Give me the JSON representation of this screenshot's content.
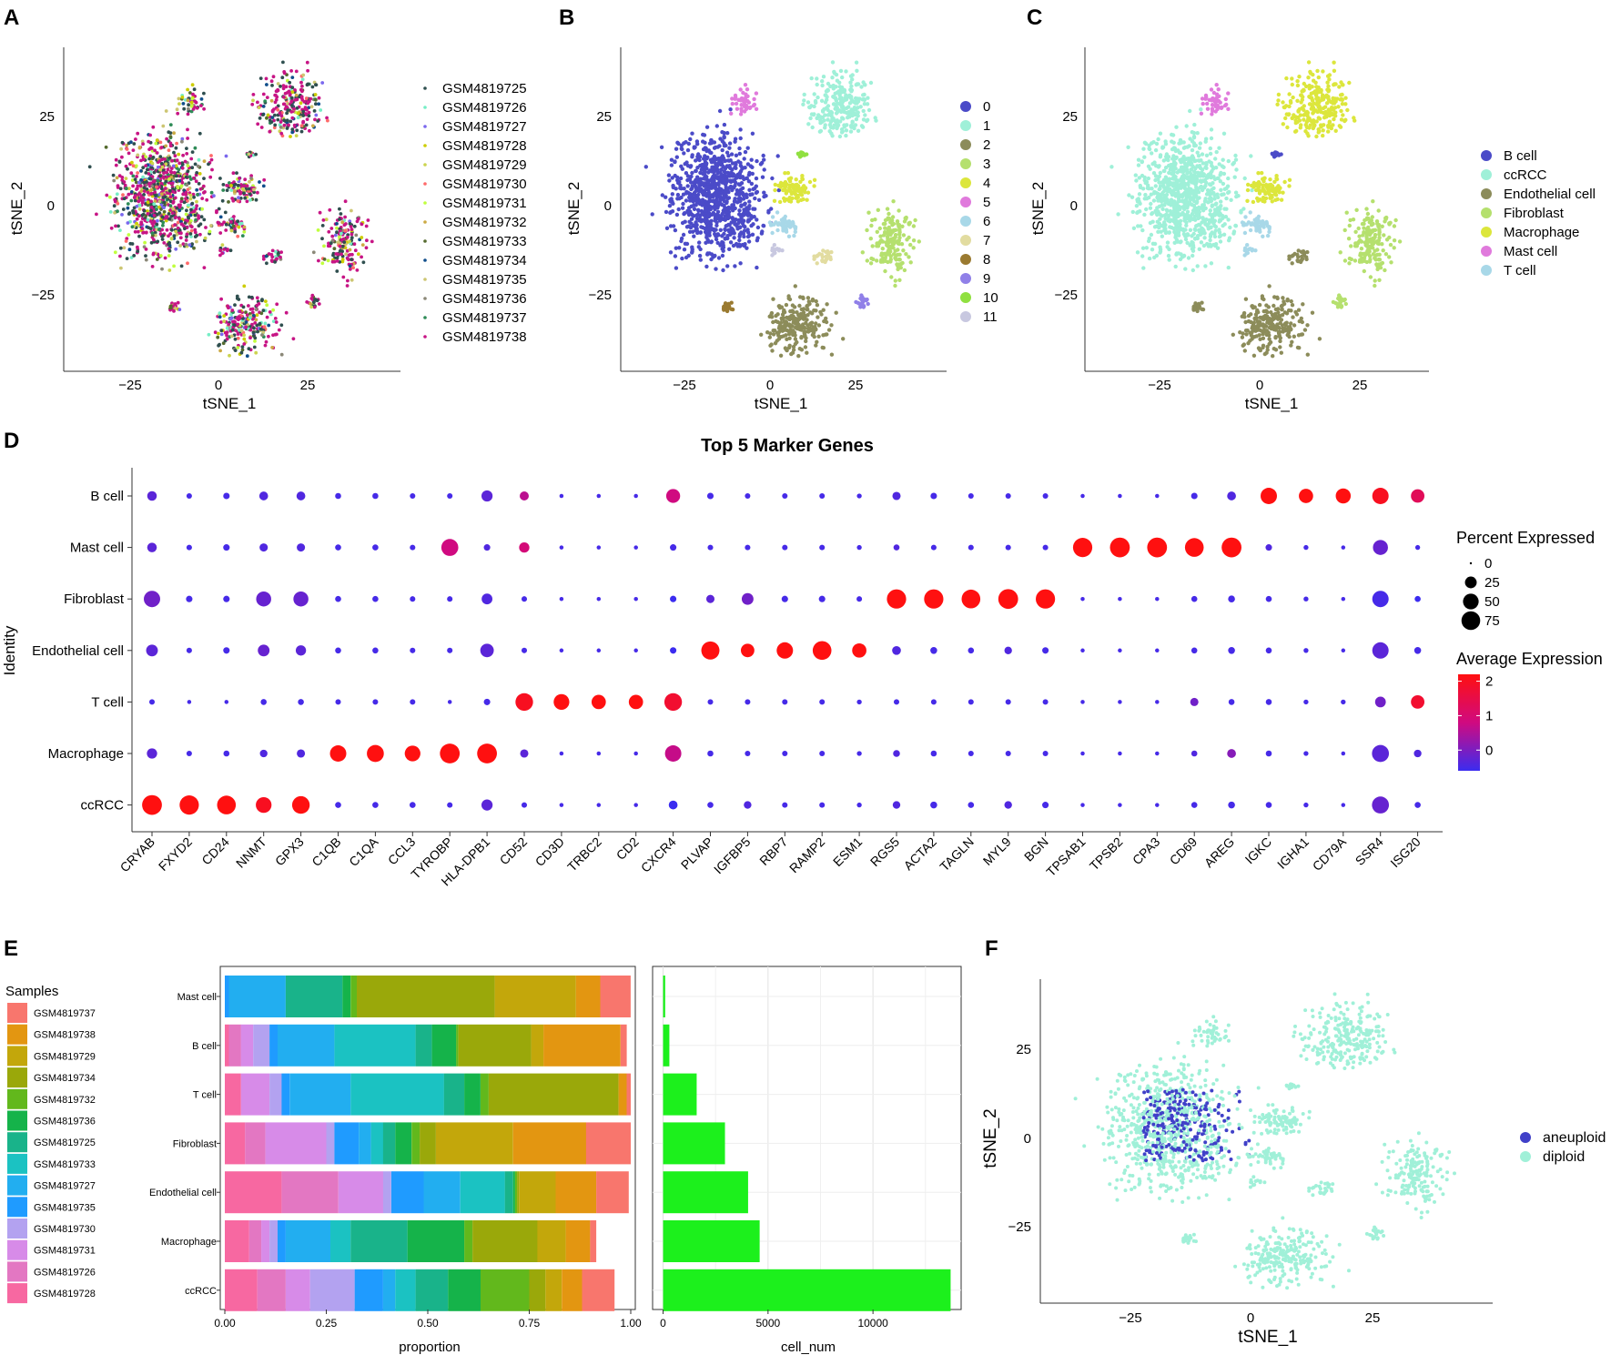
{
  "panel_letters": [
    "A",
    "B",
    "C",
    "D",
    "E",
    "F"
  ],
  "chart_data": [
    {
      "panel": "A",
      "type": "scatter",
      "xlabel": "tSNE_1",
      "ylabel": "tSNE_2",
      "xlim": [
        -42,
        46
      ],
      "ylim": [
        -46,
        45
      ],
      "xticks": [
        -25,
        0,
        25
      ],
      "yticks": [
        -25,
        0,
        25
      ],
      "xtick_labels": [
        "−25",
        "0",
        "25"
      ],
      "ytick_labels": [
        "−25",
        "0",
        "25"
      ],
      "legend": [
        "GSM4819725",
        "GSM4819726",
        "GSM4819727",
        "GSM4819728",
        "GSM4819729",
        "GSM4819730",
        "GSM4819731",
        "GSM4819732",
        "GSM4819733",
        "GSM4819734",
        "GSM4819735",
        "GSM4819736",
        "GSM4819737",
        "GSM4819738"
      ],
      "legend_colors": [
        "#2f4f4f",
        "#76eec6",
        "#7b68ee",
        "#cdcd00",
        "#ccd44f",
        "#ff6a6a",
        "#c0ff3e",
        "#ccaa44",
        "#556b2f",
        "#104e8b",
        "#cdc673",
        "#8b8878",
        "#2e8b57",
        "#c71585"
      ]
    },
    {
      "panel": "B",
      "type": "scatter",
      "xlabel": "tSNE_1",
      "ylabel": "tSNE_2",
      "xlim": [
        -42,
        46
      ],
      "ylim": [
        -46,
        45
      ],
      "xticks": [
        -25,
        0,
        25
      ],
      "yticks": [
        -25,
        0,
        25
      ],
      "xtick_labels": [
        "−25",
        "0",
        "25"
      ],
      "ytick_labels": [
        "−25",
        "0",
        "25"
      ],
      "legend": [
        "0",
        "1",
        "2",
        "3",
        "4",
        "5",
        "6",
        "7",
        "8",
        "9",
        "10",
        "11"
      ],
      "legend_colors": [
        "#4b4bc8",
        "#9ff0d8",
        "#8c8c5a",
        "#b5e06e",
        "#dce63c",
        "#e07adc",
        "#a8d8e8",
        "#e2dca0",
        "#9a7a30",
        "#9080e8",
        "#90e040",
        "#c8c8e0"
      ]
    },
    {
      "panel": "C",
      "type": "scatter",
      "xlabel": "tSNE_1",
      "ylabel": "tSNE_2",
      "xlim": [
        -42,
        46
      ],
      "ylim": [
        -46,
        45
      ],
      "xticks": [
        -25,
        0,
        25
      ],
      "yticks": [
        -25,
        0,
        25
      ],
      "xtick_labels": [
        "−25",
        "0",
        "25"
      ],
      "ytick_labels": [
        "−25",
        "0",
        "25"
      ],
      "legend": [
        "B cell",
        "ccRCC",
        "Endothelial cell",
        "Fibroblast",
        "Macrophage",
        "Mast cell",
        "T cell"
      ],
      "legend_colors": [
        "#4b4bc8",
        "#9ff0d8",
        "#8c8c5a",
        "#b5e06e",
        "#dce63c",
        "#e07adc",
        "#a8d8e8"
      ]
    },
    {
      "panel": "D",
      "type": "dotplot",
      "title": "Top 5 Marker Genes",
      "ylabel": "Identity",
      "genes": [
        "CRYAB",
        "FXYD2",
        "CD24",
        "NNMT",
        "GPX3",
        "C1QB",
        "C1QA",
        "CCL3",
        "TYROBP",
        "HLA-DPB1",
        "CD52",
        "CD3D",
        "TRBC2",
        "CD2",
        "CXCR4",
        "PLVAP",
        "IGFBP5",
        "RBP7",
        "RAMP2",
        "ESM1",
        "RGS5",
        "ACTA2",
        "TAGLN",
        "MYL9",
        "BGN",
        "TPSAB1",
        "TPSB2",
        "CPA3",
        "CD69",
        "AREG",
        "IGKC",
        "IGHA1",
        "CD79A",
        "SSR4",
        "ISG20"
      ],
      "identities": [
        "B cell",
        "Mast cell",
        "Fibroblast",
        "Endothelial cell",
        "T cell",
        "Macrophage",
        "ccRCC"
      ],
      "percent_expressed": [
        [
          15,
          3,
          5,
          12,
          12,
          4,
          4,
          3,
          3,
          22,
          13,
          1,
          1,
          1,
          38,
          5,
          3,
          3,
          3,
          2,
          10,
          5,
          3,
          3,
          3,
          1,
          1,
          1,
          5,
          12,
          55,
          40,
          45,
          55,
          35
        ],
        [
          15,
          3,
          5,
          10,
          10,
          4,
          4,
          3,
          60,
          5,
          18,
          1,
          1,
          1,
          5,
          3,
          3,
          3,
          3,
          2,
          4,
          3,
          3,
          3,
          3,
          80,
          85,
          85,
          75,
          85,
          5,
          2,
          1,
          45,
          2
        ],
        [
          55,
          5,
          5,
          45,
          45,
          4,
          4,
          3,
          3,
          20,
          3,
          1,
          1,
          1,
          5,
          10,
          25,
          5,
          5,
          3,
          80,
          80,
          75,
          85,
          80,
          1,
          1,
          1,
          4,
          6,
          4,
          2,
          1,
          55,
          4
        ],
        [
          25,
          3,
          5,
          25,
          18,
          4,
          4,
          3,
          3,
          35,
          3,
          1,
          1,
          1,
          5,
          70,
          35,
          55,
          75,
          40,
          12,
          6,
          4,
          8,
          5,
          1,
          1,
          1,
          4,
          6,
          4,
          2,
          1,
          55,
          6
        ],
        [
          3,
          1,
          1,
          4,
          4,
          3,
          3,
          3,
          1,
          5,
          65,
          50,
          40,
          40,
          65,
          3,
          3,
          3,
          3,
          2,
          3,
          3,
          3,
          3,
          3,
          1,
          1,
          1,
          10,
          4,
          4,
          2,
          2,
          20,
          35
        ],
        [
          18,
          3,
          4,
          8,
          10,
          55,
          60,
          50,
          85,
          85,
          10,
          1,
          1,
          1,
          55,
          4,
          3,
          3,
          3,
          2,
          6,
          4,
          3,
          3,
          3,
          1,
          1,
          1,
          4,
          12,
          4,
          2,
          1,
          60,
          8
        ],
        [
          85,
          80,
          75,
          50,
          65,
          4,
          4,
          4,
          3,
          22,
          3,
          1,
          1,
          1,
          12,
          4,
          8,
          3,
          3,
          2,
          8,
          6,
          4,
          8,
          5,
          1,
          1,
          1,
          4,
          6,
          4,
          2,
          1,
          60,
          4
        ]
      ],
      "average_expression": [
        [
          -0.3,
          -0.5,
          -0.5,
          -0.4,
          -0.4,
          -0.5,
          -0.5,
          -0.5,
          -0.5,
          -0.3,
          0.6,
          -0.5,
          -0.5,
          -0.5,
          0.8,
          -0.5,
          -0.5,
          -0.5,
          -0.5,
          -0.5,
          -0.4,
          -0.5,
          -0.5,
          -0.5,
          -0.5,
          -0.5,
          -0.5,
          -0.5,
          -0.5,
          -0.4,
          2.2,
          2.2,
          2.2,
          2.0,
          1.3
        ],
        [
          -0.3,
          -0.5,
          -0.5,
          -0.4,
          -0.4,
          -0.5,
          -0.5,
          -0.5,
          0.8,
          -0.4,
          0.9,
          -0.5,
          -0.5,
          -0.5,
          -0.5,
          -0.5,
          -0.5,
          -0.5,
          -0.5,
          -0.5,
          -0.4,
          -0.5,
          -0.5,
          -0.5,
          -0.5,
          2.2,
          2.2,
          2.2,
          2.2,
          2.2,
          -0.4,
          -0.5,
          -0.5,
          -0.2,
          -0.5
        ],
        [
          -0.1,
          -0.5,
          -0.5,
          -0.2,
          -0.2,
          -0.5,
          -0.5,
          -0.5,
          -0.5,
          -0.4,
          -0.5,
          -0.5,
          -0.5,
          -0.5,
          -0.6,
          -0.3,
          -0.1,
          -0.5,
          -0.5,
          -0.5,
          2.2,
          2.2,
          2.2,
          2.2,
          2.2,
          -0.5,
          -0.5,
          -0.5,
          -0.5,
          -0.5,
          -0.5,
          -0.5,
          -0.5,
          -0.5,
          -0.6
        ],
        [
          -0.3,
          -0.5,
          -0.5,
          -0.2,
          -0.3,
          -0.5,
          -0.5,
          -0.5,
          -0.5,
          -0.3,
          -0.5,
          -0.5,
          -0.5,
          -0.5,
          -0.6,
          2.2,
          2.2,
          2.2,
          2.2,
          2.2,
          -0.4,
          -0.5,
          -0.5,
          -0.4,
          -0.5,
          -0.5,
          -0.5,
          -0.5,
          -0.5,
          -0.5,
          -0.5,
          -0.5,
          -0.5,
          -0.3,
          -0.5
        ],
        [
          -0.5,
          -0.5,
          -0.5,
          -0.5,
          -0.5,
          -0.5,
          -0.5,
          -0.5,
          -0.5,
          -0.5,
          2.0,
          2.2,
          2.2,
          2.2,
          1.8,
          -0.5,
          -0.5,
          -0.5,
          -0.5,
          -0.5,
          -0.5,
          -0.5,
          -0.5,
          -0.5,
          -0.5,
          -0.5,
          -0.5,
          -0.5,
          -0.1,
          -0.5,
          -0.5,
          -0.5,
          -0.5,
          -0.1,
          1.8
        ],
        [
          -0.3,
          -0.5,
          -0.5,
          -0.4,
          -0.4,
          2.2,
          2.2,
          2.2,
          2.2,
          2.2,
          -0.3,
          -0.5,
          -0.5,
          -0.5,
          0.7,
          -0.5,
          -0.5,
          -0.5,
          -0.5,
          -0.5,
          -0.4,
          -0.5,
          -0.5,
          -0.5,
          -0.5,
          -0.5,
          -0.5,
          -0.5,
          -0.4,
          0.1,
          -0.5,
          -0.5,
          -0.5,
          -0.3,
          -0.4
        ],
        [
          2.2,
          2.2,
          2.2,
          2.0,
          2.2,
          -0.5,
          -0.5,
          -0.5,
          -0.5,
          -0.3,
          -0.5,
          -0.5,
          -0.5,
          -0.5,
          -0.6,
          -0.5,
          -0.4,
          -0.5,
          -0.5,
          -0.5,
          -0.4,
          -0.5,
          -0.5,
          -0.4,
          -0.5,
          -0.5,
          -0.5,
          -0.5,
          -0.5,
          -0.5,
          -0.5,
          -0.5,
          -0.5,
          -0.2,
          -0.5
        ]
      ],
      "size_legend_title": "Percent Expressed",
      "size_legend_values": [
        0,
        25,
        50,
        75
      ],
      "size_legend_labels": [
        "0",
        "25",
        "50",
        "75"
      ],
      "color_legend_title": "Average Expression",
      "color_legend_ticks": [
        2,
        1,
        0
      ],
      "color_legend_labels": [
        "2",
        "1",
        "0"
      ],
      "color_range": [
        -0.6,
        2.2
      ],
      "color_low": "#3b2cf0",
      "color_high": "#ff1010"
    },
    {
      "panel": "E",
      "type": "stacked_bar",
      "xlabel": "proportion",
      "categories": [
        "Mast cell",
        "B cell",
        "T cell",
        "Fibroblast",
        "Endothelial cell",
        "Macrophage",
        "ccRCC"
      ],
      "xticks": [
        0,
        0.25,
        0.5,
        0.75,
        1.0
      ],
      "xtick_labels": [
        "0.00",
        "0.25",
        "0.50",
        "0.75",
        "1.00"
      ],
      "legend_title": "Samples",
      "series": [
        {
          "name": "GSM4819728",
          "color": "#f768a1",
          "values": [
            0,
            0.01,
            0.04,
            0.05,
            0.14,
            0.06,
            0.08
          ]
        },
        {
          "name": "GSM4819726",
          "color": "#e377c2",
          "values": [
            0,
            0.03,
            0,
            0.05,
            0.14,
            0.03,
            0.07
          ]
        },
        {
          "name": "GSM4819731",
          "color": "#d78be8",
          "values": [
            0,
            0.03,
            0.07,
            0.15,
            0.11,
            0.02,
            0.06
          ]
        },
        {
          "name": "GSM4819730",
          "color": "#b3a2f0",
          "values": [
            0,
            0.04,
            0.03,
            0.02,
            0.02,
            0.02,
            0.11
          ]
        },
        {
          "name": "GSM4819735",
          "color": "#1f9bff",
          "values": [
            0.01,
            0.02,
            0.02,
            0.06,
            0.08,
            0.02,
            0.07
          ]
        },
        {
          "name": "GSM4819727",
          "color": "#22aef0",
          "values": [
            0.14,
            0.14,
            0.15,
            0.03,
            0.09,
            0.11,
            0.03
          ]
        },
        {
          "name": "GSM4819733",
          "color": "#1bc2c2",
          "values": [
            0,
            0.2,
            0.23,
            0.03,
            0.11,
            0.05,
            0.05
          ]
        },
        {
          "name": "GSM4819725",
          "color": "#19b38a",
          "values": [
            0.14,
            0.04,
            0.05,
            0.03,
            0.02,
            0.14,
            0.08
          ]
        },
        {
          "name": "GSM4819736",
          "color": "#15b34a",
          "values": [
            0.02,
            0.06,
            0.04,
            0.04,
            0.005,
            0.14,
            0.08
          ]
        },
        {
          "name": "GSM4819732",
          "color": "#62b81c",
          "values": [
            0.015,
            0.005,
            0.02,
            0.02,
            0.005,
            0.02,
            0.12
          ]
        },
        {
          "name": "GSM4819734",
          "color": "#9aa80a",
          "values": [
            0.34,
            0.18,
            0.32,
            0.04,
            0.005,
            0.16,
            0.04
          ]
        },
        {
          "name": "GSM4819729",
          "color": "#c3a70b",
          "values": [
            0.2,
            0.03,
            0,
            0.19,
            0.09,
            0.07,
            0.04
          ]
        },
        {
          "name": "GSM4819738",
          "color": "#e39611",
          "values": [
            0.06,
            0.19,
            0.02,
            0.18,
            0.1,
            0.06,
            0.05
          ]
        },
        {
          "name": "GSM4819737",
          "color": "#f8766d",
          "values": [
            0.085,
            0.015,
            0.02,
            0.12,
            0.08,
            0.015,
            0.08
          ]
        }
      ],
      "legend_order": [
        "GSM4819737",
        "GSM4819738",
        "GSM4819729",
        "GSM4819734",
        "GSM4819732",
        "GSM4819736",
        "GSM4819725",
        "GSM4819733",
        "GSM4819727",
        "GSM4819735",
        "GSM4819730",
        "GSM4819731",
        "GSM4819726",
        "GSM4819728"
      ]
    },
    {
      "panel": "E2",
      "type": "bar",
      "orientation": "horizontal",
      "xlabel": "cell_num",
      "categories": [
        "Mast cell",
        "B cell",
        "T cell",
        "Fibroblast",
        "Endothelial cell",
        "Macrophage",
        "ccRCC"
      ],
      "values": [
        100,
        300,
        1600,
        2950,
        4050,
        4600,
        13700
      ],
      "xticks": [
        0,
        5000,
        10000
      ],
      "xtick_labels": [
        "0",
        "5000",
        "10000"
      ],
      "xlim": [
        -500,
        14200
      ],
      "color": "#1cf01c"
    },
    {
      "panel": "F",
      "type": "scatter",
      "xlabel": "tSNE_1",
      "ylabel": "tSNE_2",
      "xlim": [
        -42,
        46
      ],
      "ylim": [
        -46,
        45
      ],
      "xticks": [
        -25,
        0,
        25
      ],
      "yticks": [
        -25,
        0,
        25
      ],
      "xtick_labels": [
        "−25",
        "0",
        "25"
      ],
      "ytick_labels": [
        "−25",
        "0",
        "25"
      ],
      "legend": [
        "aneuploid",
        "diploid"
      ],
      "legend_colors": [
        "#4040c8",
        "#a0f0d8"
      ]
    }
  ]
}
